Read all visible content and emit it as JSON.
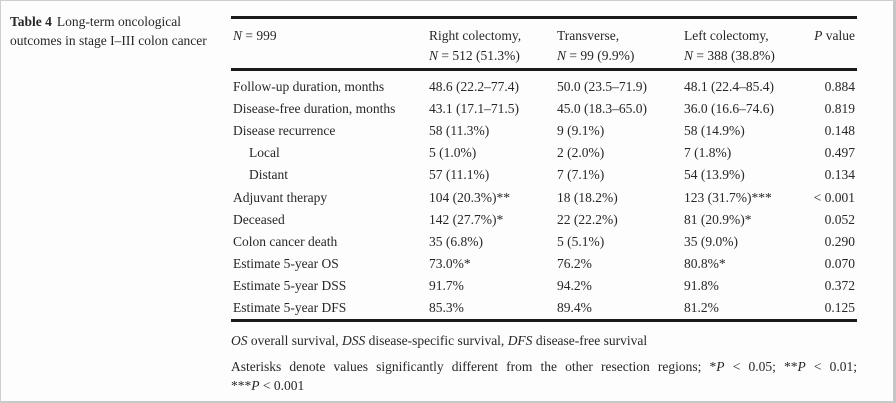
{
  "caption": {
    "label": "Table 4",
    "text": "Long-term oncological outcomes in stage I–III colon cancer"
  },
  "table": {
    "header": {
      "total": {
        "n": "N",
        "rest": " = 999"
      },
      "columns": [
        {
          "line1": "Right colectomy,",
          "n": "N",
          "rest": " = 512 (51.3%)"
        },
        {
          "line1": "Transverse,",
          "n": "N",
          "rest": " = 99 (9.9%)"
        },
        {
          "line1": "Left colectomy,",
          "n": "N",
          "rest": " = 388 (38.8%)"
        }
      ],
      "p": {
        "italic": "P",
        "rest": " value"
      }
    },
    "rows": [
      {
        "label": "Follow-up duration, months",
        "right": "48.6 (22.2–77.4)",
        "transverse": "50.0 (23.5–71.9)",
        "left": "48.1 (22.4–85.4)",
        "p": "0.884"
      },
      {
        "label": "Disease-free duration, months",
        "right": "43.1 (17.1–71.5)",
        "transverse": "45.0 (18.3–65.0)",
        "left": "36.0 (16.6–74.6)",
        "p": "0.819"
      },
      {
        "label": "Disease recurrence",
        "right": "58 (11.3%)",
        "transverse": "9 (9.1%)",
        "left": "58 (14.9%)",
        "p": "0.148"
      },
      {
        "label": "Local",
        "right": "5 (1.0%)",
        "transverse": "2 (2.0%)",
        "left": "7 (1.8%)",
        "p": "0.497"
      },
      {
        "label": "Distant",
        "right": "57 (11.1%)",
        "transverse": "7 (7.1%)",
        "left": "54 (13.9%)",
        "p": "0.134"
      },
      {
        "label": "Adjuvant therapy",
        "right": "104 (20.3%)**",
        "transverse": "18 (18.2%)",
        "left": "123 (31.7%)***",
        "p": "< 0.001"
      },
      {
        "label": "Deceased",
        "right": "142 (27.7%)*",
        "transverse": "22 (22.2%)",
        "left": "81 (20.9%)*",
        "p": "0.052"
      },
      {
        "label": "Colon cancer death",
        "right": "35 (6.8%)",
        "transverse": "5 (5.1%)",
        "left": "35 (9.0%)",
        "p": "0.290"
      },
      {
        "label": "Estimate 5-year OS",
        "right": "73.0%*",
        "transverse": "76.2%",
        "left": "80.8%*",
        "p": "0.070"
      },
      {
        "label": "Estimate 5-year DSS",
        "right": "91.7%",
        "transverse": "94.2%",
        "left": "91.8%",
        "p": "0.372"
      },
      {
        "label": "Estimate 5-year DFS",
        "right": "85.3%",
        "transverse": "89.4%",
        "left": "81.2%",
        "p": "0.125"
      }
    ]
  },
  "footnotes": {
    "abbreviations": {
      "os": "OS",
      "os_text": " overall survival, ",
      "dss": "DSS",
      "dss_text": " disease-specific survival, ",
      "dfs": "DFS",
      "dfs_text": " disease-free survival"
    },
    "significance": {
      "lead": "Asterisks denote values significantly different from the other resection regions; *",
      "p1": "P",
      "p1_text": " < 0.05; **",
      "p2": "P",
      "p2_text": " < 0.01;",
      "stars3": "***",
      "p3": "P",
      "p3_text": " < 0.001"
    }
  }
}
